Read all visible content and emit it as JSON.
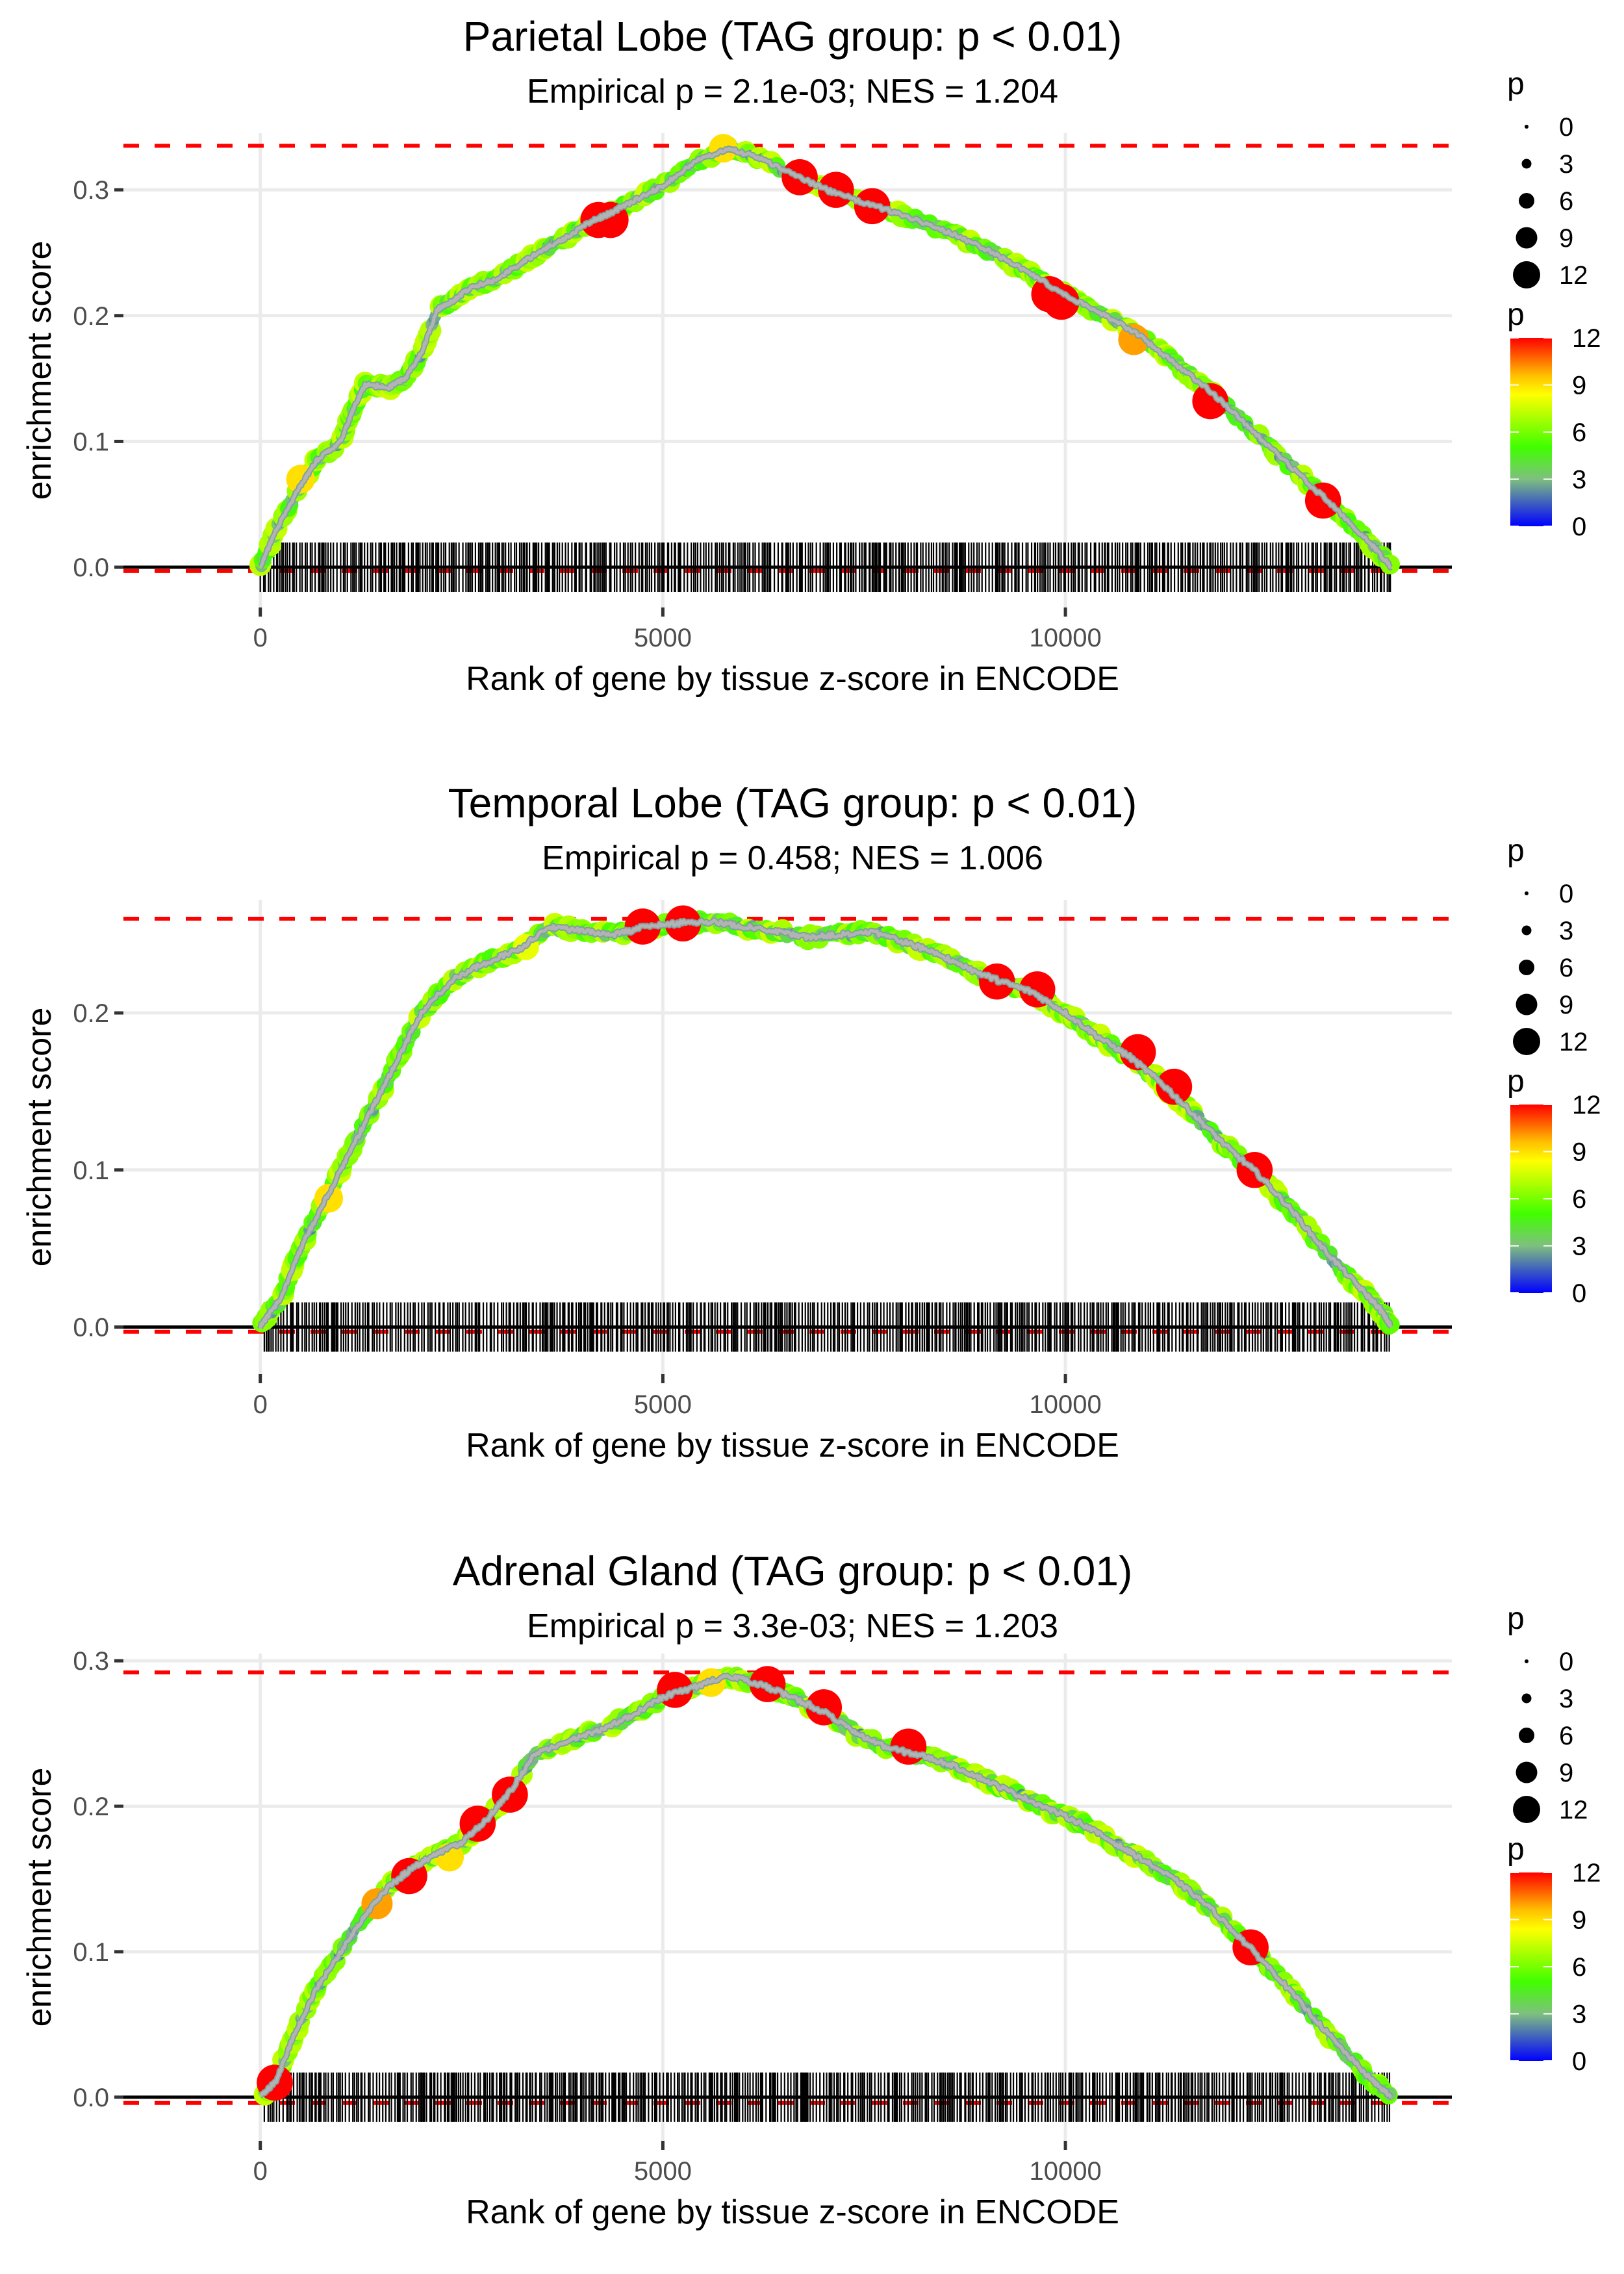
{
  "chart_data": [
    {
      "type": "line",
      "title": "Parietal Lobe (TAG group: p < 0.01)",
      "subtitle": "Empirical p = 2.1e-03; NES = 1.204",
      "xlabel": "Rank of gene by tissue z-score in ENCODE",
      "ylabel": "enrichment score",
      "x_ticks": [
        0,
        5000,
        10000
      ],
      "x_tick_labels": [
        "0",
        "5000",
        "10000"
      ],
      "y_ticks": [
        0.0,
        0.1,
        0.2,
        0.3
      ],
      "y_tick_labels": [
        "0.0",
        "0.1",
        "0.2",
        "0.3"
      ],
      "xlim": [
        -1700,
        14800
      ],
      "ylim": [
        -0.032,
        0.345
      ],
      "grid": true,
      "max_es": 0.335,
      "min_es": -0.003,
      "rug_range": [
        0,
        14050
      ],
      "series": [
        {
          "name": "running enrichment score",
          "x": [
            0,
            200,
            500,
            700,
            1000,
            1150,
            1300,
            1600,
            1800,
            2000,
            2200,
            2400,
            2600,
            2900,
            3200,
            3500,
            3800,
            4100,
            4300,
            4600,
            5000,
            5400,
            5800,
            6200,
            6700,
            7100,
            7600,
            8100,
            8600,
            9100,
            9600,
            10000,
            10500,
            10900,
            11300,
            11800,
            12300,
            12800,
            13300,
            13800,
            14050
          ],
          "y": [
            0.0,
            0.03,
            0.065,
            0.085,
            0.1,
            0.125,
            0.145,
            0.143,
            0.15,
            0.17,
            0.205,
            0.212,
            0.222,
            0.228,
            0.24,
            0.252,
            0.262,
            0.275,
            0.28,
            0.29,
            0.303,
            0.322,
            0.333,
            0.325,
            0.31,
            0.298,
            0.288,
            0.277,
            0.265,
            0.25,
            0.232,
            0.216,
            0.2,
            0.185,
            0.165,
            0.14,
            0.11,
            0.08,
            0.05,
            0.018,
            0.0
          ]
        }
      ],
      "highlight_points": [
        {
          "x": 500,
          "y": 0.07,
          "p": 9
        },
        {
          "x": 4200,
          "y": 0.276,
          "p": 12
        },
        {
          "x": 4350,
          "y": 0.276,
          "p": 12
        },
        {
          "x": 6700,
          "y": 0.31,
          "p": 12
        },
        {
          "x": 7150,
          "y": 0.3,
          "p": 12
        },
        {
          "x": 7600,
          "y": 0.287,
          "p": 12
        },
        {
          "x": 5750,
          "y": 0.333,
          "p": 9
        },
        {
          "x": 9800,
          "y": 0.217,
          "p": 12
        },
        {
          "x": 9950,
          "y": 0.211,
          "p": 12
        },
        {
          "x": 10850,
          "y": 0.181,
          "p": 10
        },
        {
          "x": 11800,
          "y": 0.132,
          "p": 12
        },
        {
          "x": 13200,
          "y": 0.053,
          "p": 12
        }
      ]
    },
    {
      "type": "line",
      "title": "Temporal Lobe (TAG group: p < 0.01)",
      "subtitle": "Empirical p = 0.458; NES = 1.006",
      "xlabel": "Rank of gene by tissue z-score in ENCODE",
      "ylabel": "enrichment score",
      "x_ticks": [
        0,
        5000,
        10000
      ],
      "x_tick_labels": [
        "0",
        "5000",
        "10000"
      ],
      "y_ticks": [
        0.0,
        0.1,
        0.2
      ],
      "y_tick_labels": [
        "0.0",
        "0.1",
        "0.2"
      ],
      "xlim": [
        -1700,
        14800
      ],
      "ylim": [
        -0.03,
        0.272
      ],
      "grid": true,
      "max_es": 0.26,
      "min_es": -0.003,
      "rug_range": [
        50,
        14050
      ],
      "series": [
        {
          "name": "running enrichment score",
          "x": [
            0,
            250,
            500,
            800,
            1100,
            1400,
            1700,
            2000,
            2400,
            2800,
            3200,
            3600,
            4000,
            4400,
            4800,
            5200,
            5600,
            6000,
            6400,
            6800,
            7200,
            7600,
            8000,
            8400,
            8800,
            9200,
            9600,
            10000,
            10400,
            10800,
            11200,
            11600,
            12000,
            12400,
            12800,
            13200,
            13600,
            13900,
            14050
          ],
          "y": [
            0.0,
            0.018,
            0.05,
            0.08,
            0.11,
            0.14,
            0.17,
            0.2,
            0.222,
            0.232,
            0.24,
            0.255,
            0.252,
            0.25,
            0.255,
            0.257,
            0.258,
            0.255,
            0.252,
            0.248,
            0.25,
            0.252,
            0.245,
            0.238,
            0.228,
            0.22,
            0.213,
            0.2,
            0.185,
            0.172,
            0.155,
            0.135,
            0.115,
            0.097,
            0.075,
            0.05,
            0.028,
            0.012,
            0.0
          ]
        }
      ],
      "highlight_points": [
        {
          "x": 850,
          "y": 0.082,
          "p": 9
        },
        {
          "x": 3300,
          "y": 0.242,
          "p": 8
        },
        {
          "x": 4750,
          "y": 0.255,
          "p": 12
        },
        {
          "x": 5250,
          "y": 0.257,
          "p": 12
        },
        {
          "x": 9150,
          "y": 0.22,
          "p": 12
        },
        {
          "x": 9650,
          "y": 0.215,
          "p": 12
        },
        {
          "x": 10900,
          "y": 0.175,
          "p": 12
        },
        {
          "x": 11350,
          "y": 0.153,
          "p": 12
        },
        {
          "x": 12350,
          "y": 0.1,
          "p": 12
        }
      ]
    },
    {
      "type": "line",
      "title": "Adrenal Gland (TAG group: p < 0.01)",
      "subtitle": "Empirical p = 3.3e-03; NES = 1.203",
      "xlabel": "Rank of gene by tissue z-score in ENCODE",
      "ylabel": "enrichment score",
      "x_ticks": [
        0,
        5000,
        10000
      ],
      "x_tick_labels": [
        "0",
        "5000",
        "10000"
      ],
      "y_ticks": [
        0.0,
        0.1,
        0.2,
        0.3
      ],
      "y_tick_labels": [
        "0.0",
        "0.1",
        "0.2",
        "0.3"
      ],
      "xlim": [
        -1700,
        14800
      ],
      "ylim": [
        -0.03,
        0.305
      ],
      "grid": true,
      "max_es": 0.292,
      "min_es": -0.004,
      "rug_range": [
        50,
        14050
      ],
      "series": [
        {
          "name": "running enrichment score",
          "x": [
            0,
            200,
            400,
            700,
            1000,
            1300,
            1600,
            1900,
            2200,
            2500,
            2800,
            3100,
            3400,
            3800,
            4200,
            4600,
            5000,
            5400,
            5800,
            6200,
            6600,
            7000,
            7400,
            7800,
            8200,
            8600,
            9000,
            9400,
            9800,
            10200,
            10600,
            11000,
            11400,
            11800,
            12200,
            12600,
            13000,
            13400,
            13800,
            14050
          ],
          "y": [
            0.0,
            0.012,
            0.04,
            0.075,
            0.1,
            0.125,
            0.145,
            0.158,
            0.168,
            0.175,
            0.19,
            0.21,
            0.235,
            0.245,
            0.252,
            0.262,
            0.275,
            0.282,
            0.29,
            0.284,
            0.275,
            0.265,
            0.25,
            0.24,
            0.235,
            0.228,
            0.218,
            0.208,
            0.198,
            0.188,
            0.175,
            0.162,
            0.148,
            0.13,
            0.108,
            0.085,
            0.06,
            0.035,
            0.012,
            0.0
          ]
        }
      ],
      "highlight_points": [
        {
          "x": 180,
          "y": 0.01,
          "p": 12
        },
        {
          "x": 1450,
          "y": 0.133,
          "p": 10
        },
        {
          "x": 1850,
          "y": 0.152,
          "p": 12
        },
        {
          "x": 2350,
          "y": 0.165,
          "p": 9
        },
        {
          "x": 2700,
          "y": 0.188,
          "p": 12
        },
        {
          "x": 3100,
          "y": 0.208,
          "p": 12
        },
        {
          "x": 5150,
          "y": 0.28,
          "p": 12
        },
        {
          "x": 5600,
          "y": 0.285,
          "p": 9
        },
        {
          "x": 6300,
          "y": 0.284,
          "p": 12
        },
        {
          "x": 7000,
          "y": 0.268,
          "p": 12
        },
        {
          "x": 8050,
          "y": 0.241,
          "p": 12
        },
        {
          "x": 12300,
          "y": 0.103,
          "p": 12
        }
      ]
    }
  ],
  "legend": {
    "size_title": "p",
    "size_labels": [
      "0",
      "3",
      "6",
      "9",
      "12"
    ],
    "size_values": [
      0,
      3,
      6,
      9,
      12
    ],
    "color_title": "p",
    "color_labels": [
      "12",
      "9",
      "6",
      "3",
      "0"
    ],
    "color_values": [
      12,
      9,
      6,
      3,
      0
    ],
    "color_scale": [
      "#0000ff",
      "#7fbf7f",
      "#40ff00",
      "#ffff00",
      "#ff0000"
    ]
  },
  "colors": {
    "curve": "#b3b3b3",
    "max_line": "#ff0000",
    "zero_line": "#000000",
    "grid": "#ebebeb",
    "rug": "#000000"
  }
}
